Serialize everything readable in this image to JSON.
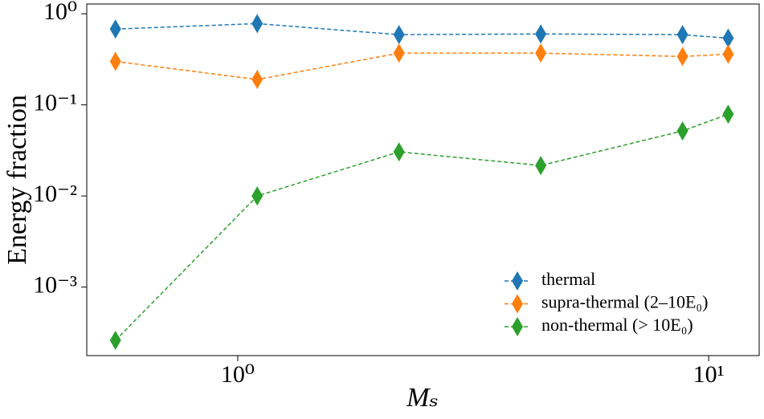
{
  "chart_data": {
    "type": "line",
    "xlabel": "Mₛ",
    "ylabel": "Energy fraction",
    "xscale": "log",
    "yscale": "log",
    "x": [
      0.55,
      1.1,
      2.2,
      4.4,
      8.8,
      11
    ],
    "series": [
      {
        "name": "thermal",
        "color": "#1f77b4",
        "values": [
          0.68,
          0.78,
          0.59,
          0.6,
          0.59,
          0.54
        ]
      },
      {
        "name": "supra-thermal (2–10E₀)",
        "color": "#ff7f0e",
        "values": [
          0.3,
          0.19,
          0.37,
          0.37,
          0.34,
          0.36
        ]
      },
      {
        "name": "non-thermal (> 10E₀)",
        "color": "#2ca02c",
        "values": [
          0.00026,
          0.01,
          0.0305,
          0.0216,
          0.0518,
          0.079
        ]
      }
    ],
    "xlim": [
      0.478,
      12.8
    ],
    "ylim": [
      0.000177,
      1.28
    ],
    "xticks": [
      {
        "value": 1,
        "label": "10⁰"
      },
      {
        "value": 10,
        "label": "10¹"
      }
    ],
    "yticks": [
      {
        "value": 0.001,
        "label": "10⁻³"
      },
      {
        "value": 0.01,
        "label": "10⁻²"
      },
      {
        "value": 0.1,
        "label": "10⁻¹"
      },
      {
        "value": 1,
        "label": "10⁰"
      }
    ],
    "legend": "lower right",
    "grid": false
  }
}
